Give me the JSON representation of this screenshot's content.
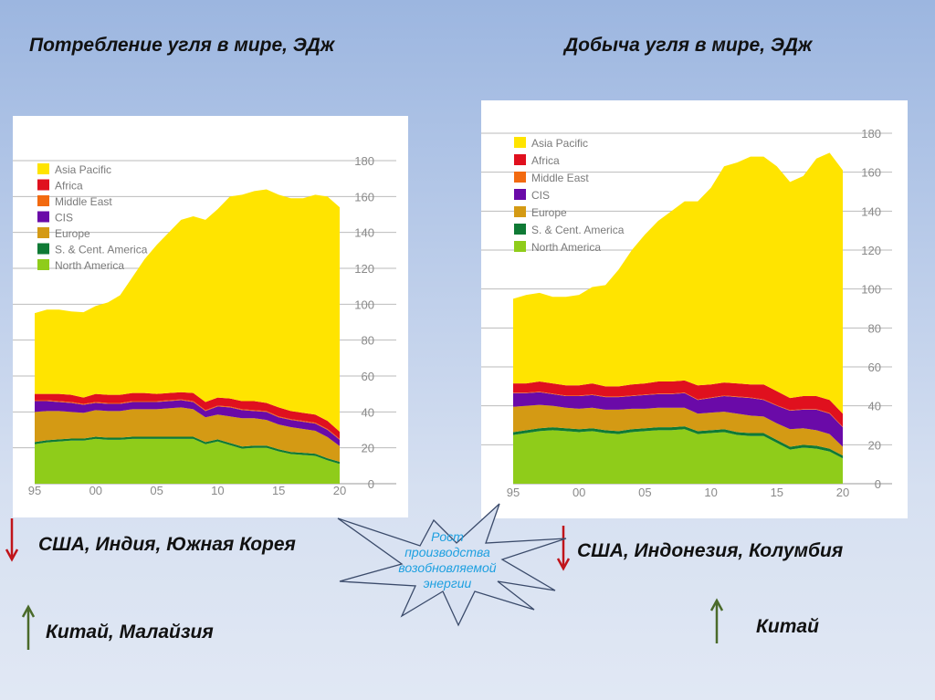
{
  "titles": {
    "left": "Потребление угля в мире, ЭДж",
    "right": "Добыча угля в мире, ЭДж"
  },
  "notes": {
    "left_down": "США, Индия, Южная Корея",
    "left_up": "Китай, Малайзия",
    "right_down": "США, Индонезия, Колумбия",
    "right_up": "Китай"
  },
  "callout": {
    "lines": [
      "Рост",
      "производства",
      "возобновляемой",
      "энергии"
    ],
    "color": "#1ea0e0"
  },
  "arrow_colors": {
    "down": "#c0141a",
    "up": "#4a6a2a"
  },
  "chart_data": [
    {
      "type": "area",
      "title": "Потребление угля в мире, ЭДж",
      "x": [
        1995,
        1996,
        1997,
        1998,
        1999,
        2000,
        2001,
        2002,
        2003,
        2004,
        2005,
        2006,
        2007,
        2008,
        2009,
        2010,
        2011,
        2012,
        2013,
        2014,
        2015,
        2016,
        2017,
        2018,
        2019,
        2020
      ],
      "x_tick_labels": [
        "95",
        "00",
        "05",
        "10",
        "15",
        "20"
      ],
      "y_tick_labels": [
        "0",
        "20",
        "40",
        "60",
        "80",
        "100",
        "120",
        "140",
        "160",
        "180"
      ],
      "ylim": [
        0,
        180
      ],
      "legend_position": "top-left",
      "series": [
        {
          "name": "North America",
          "color": "#8fcc1a",
          "values": [
            22,
            23,
            23.5,
            24,
            24,
            25,
            24.5,
            24.5,
            25,
            25,
            25,
            25,
            25,
            25,
            22,
            23.5,
            21.5,
            19.5,
            20,
            20,
            18,
            16.5,
            16,
            15.5,
            13,
            11
          ]
        },
        {
          "name": "S. & Cent. America",
          "color": "#0f7a35",
          "values": [
            1.2,
            1.2,
            1.2,
            1.2,
            1.2,
            1.2,
            1.2,
            1.2,
            1.2,
            1.2,
            1.2,
            1.2,
            1.2,
            1.2,
            1.2,
            1.2,
            1.2,
            1.2,
            1.2,
            1.2,
            1.2,
            1.2,
            1.2,
            1.2,
            1.2,
            1.2
          ]
        },
        {
          "name": "Europe",
          "color": "#d49a14",
          "values": [
            16.8,
            16.3,
            15.8,
            14.8,
            14.3,
            14.8,
            14.8,
            14.8,
            15.3,
            15.3,
            15.3,
            15.8,
            16.3,
            15.3,
            13.8,
            13.8,
            14.8,
            15.8,
            15.3,
            14.3,
            13.8,
            13.8,
            13.3,
            12.8,
            11.8,
            8.8
          ]
        },
        {
          "name": "CIS",
          "color": "#6a0aa8",
          "values": [
            6,
            5.5,
            5,
            5,
            4.5,
            4,
            4,
            4,
            4,
            4,
            4,
            4,
            4,
            4,
            3.5,
            4.5,
            5,
            4.5,
            4,
            4.5,
            4,
            4,
            4,
            4,
            4,
            3.5
          ]
        },
        {
          "name": "Middle East",
          "color": "#f26a10",
          "values": [
            0.5,
            0.5,
            0.5,
            0.5,
            0.5,
            0.5,
            0.5,
            0.5,
            0.5,
            0.5,
            0.5,
            0.5,
            0.5,
            0.5,
            0.5,
            0.5,
            0.5,
            0.5,
            0.5,
            0.5,
            0.5,
            0.5,
            0.5,
            0.5,
            0.5,
            0.5
          ]
        },
        {
          "name": "Africa",
          "color": "#e0101e",
          "values": [
            3.5,
            3.5,
            4,
            4,
            3.5,
            4.5,
            4.5,
            4.5,
            4.5,
            4.5,
            4,
            4,
            4,
            4.5,
            4.5,
            4.5,
            4.5,
            4.5,
            5,
            4.5,
            5,
            4.5,
            4.5,
            4.5,
            4.5,
            4
          ]
        },
        {
          "name": "Asia Pacific",
          "color": "#ffe400",
          "values": [
            45,
            47,
            47,
            46.5,
            47.5,
            49,
            51.5,
            55.5,
            64.5,
            74.5,
            83,
            89.5,
            96,
            98.5,
            101.5,
            105,
            112.5,
            115,
            117,
            119,
            118.5,
            118.5,
            119.5,
            122.5,
            125,
            125
          ]
        }
      ]
    },
    {
      "type": "area",
      "title": "Добыча угля в мире, ЭДж",
      "x": [
        1995,
        1996,
        1997,
        1998,
        1999,
        2000,
        2001,
        2002,
        2003,
        2004,
        2005,
        2006,
        2007,
        2008,
        2009,
        2010,
        2011,
        2012,
        2013,
        2014,
        2015,
        2016,
        2017,
        2018,
        2019,
        2020
      ],
      "x_tick_labels": [
        "95",
        "00",
        "05",
        "10",
        "15",
        "20"
      ],
      "y_tick_labels": [
        "0",
        "20",
        "40",
        "60",
        "80",
        "100",
        "120",
        "140",
        "160",
        "180"
      ],
      "ylim": [
        0,
        180
      ],
      "legend_position": "top-left",
      "series": [
        {
          "name": "North America",
          "color": "#8fcc1a",
          "values": [
            25,
            26,
            27,
            27.5,
            27,
            26.5,
            27,
            26,
            25.5,
            26.5,
            27,
            27.5,
            27.5,
            28,
            25.5,
            26,
            26.5,
            25,
            24.5,
            24.5,
            21,
            17.5,
            18.5,
            18,
            16.5,
            13
          ]
        },
        {
          "name": "S. & Cent. America",
          "color": "#0f7a35",
          "values": [
            1.5,
            1.5,
            1.5,
            1.5,
            1.5,
            1.5,
            1.5,
            1.5,
            1.5,
            1.5,
            1.5,
            1.5,
            1.5,
            1.5,
            1.5,
            1.5,
            1.5,
            1.5,
            1.5,
            1.5,
            1.5,
            1.5,
            1.5,
            1.5,
            1.5,
            1.5
          ]
        },
        {
          "name": "Europe",
          "color": "#d49a14",
          "values": [
            13,
            12.5,
            12,
            11,
            10.5,
            10.5,
            10.5,
            10.5,
            11,
            10.5,
            10,
            10,
            10,
            9.5,
            9,
            9,
            9,
            9.5,
            9,
            8.5,
            8.5,
            9,
            8.5,
            8,
            7.5,
            4.5
          ]
        },
        {
          "name": "CIS",
          "color": "#6a0aa8",
          "values": [
            7,
            6.5,
            6.5,
            6,
            6,
            6.5,
            6.5,
            6.5,
            6.5,
            6.5,
            7,
            7,
            7,
            7.5,
            7,
            7.5,
            8,
            8.5,
            9,
            8.5,
            9,
            9.5,
            9.5,
            10.5,
            10.5,
            10
          ]
        },
        {
          "name": "Middle East",
          "color": "#f26a10",
          "values": [
            0.3,
            0.3,
            0.3,
            0.3,
            0.3,
            0.3,
            0.3,
            0.3,
            0.3,
            0.3,
            0.3,
            0.3,
            0.3,
            0.3,
            0.3,
            0.3,
            0.3,
            0.3,
            0.3,
            0.3,
            0.3,
            0.3,
            0.3,
            0.3,
            0.3,
            0.3
          ]
        },
        {
          "name": "Africa",
          "color": "#e0101e",
          "values": [
            4.7,
            4.7,
            5.2,
            5.2,
            5.2,
            5.2,
            5.7,
            5.2,
            5.2,
            5.7,
            5.7,
            6.2,
            6.2,
            6.2,
            7.2,
            6.7,
            6.7,
            6.7,
            6.7,
            7.7,
            7.2,
            6.2,
            6.7,
            6.7,
            6.7,
            6.7
          ]
        },
        {
          "name": "Asia Pacific",
          "color": "#ffe400",
          "values": [
            43.5,
            45.5,
            45.5,
            44.5,
            45.5,
            46.5,
            49.5,
            52,
            60,
            69,
            76.5,
            82.5,
            87.5,
            92,
            94.5,
            101,
            111,
            113.5,
            117,
            117,
            115.5,
            111,
            113,
            122,
            127,
            125
          ]
        }
      ]
    }
  ]
}
